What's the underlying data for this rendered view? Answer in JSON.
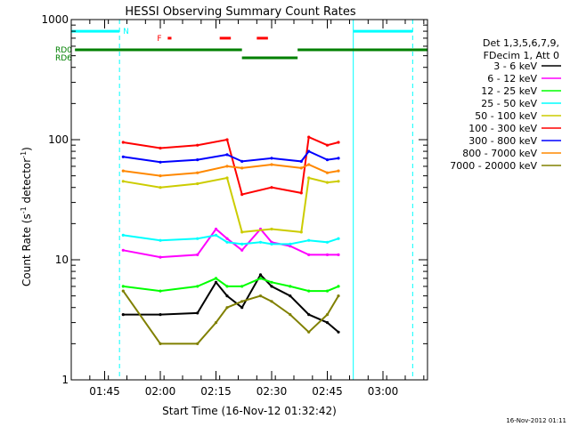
{
  "chart_data": {
    "type": "line",
    "title": "HESSI Observing Summary Count Rates",
    "xlabel": "Start Time (16-Nov-12 01:32:42)",
    "ylabel_main": "Count Rate (s",
    "ylabel_sup1": "-1",
    "ylabel_mid": " detector",
    "ylabel_sup2": "-1",
    "ylabel_end": ")",
    "y_scale": "log",
    "ylim": [
      1,
      1000
    ],
    "xlim": [
      "01:36",
      "03:12"
    ],
    "y_ticks": [
      {
        "value": 1,
        "label": "1"
      },
      {
        "value": 10,
        "label": "10"
      },
      {
        "value": 100,
        "label": "100"
      },
      {
        "value": 1000,
        "label": "1000"
      }
    ],
    "x_ticks": [
      {
        "value": "01:45",
        "label": "01:45"
      },
      {
        "value": "02:00",
        "label": "02:00"
      },
      {
        "value": "02:15",
        "label": "02:15"
      },
      {
        "value": "02:30",
        "label": "02:30"
      },
      {
        "value": "02:45",
        "label": "02:45"
      },
      {
        "value": "03:00",
        "label": "03:00"
      }
    ],
    "legend": {
      "placement": "right",
      "header": [
        "Det 1,3,5,6,7,9,",
        "FDecim 1, Att 0"
      ]
    },
    "series": [
      {
        "name": "3 - 6 keV",
        "color": "#000000",
        "values": [
          [
            "01:50",
            3.5
          ],
          [
            "02:00",
            3.5
          ],
          [
            "02:10",
            3.6
          ],
          [
            "02:15",
            6.5
          ],
          [
            "02:18",
            5
          ],
          [
            "02:22",
            4
          ],
          [
            "02:27",
            7.5
          ],
          [
            "02:30",
            6
          ],
          [
            "02:35",
            5
          ],
          [
            "02:40",
            3.5
          ],
          [
            "02:45",
            3
          ],
          [
            "02:48",
            2.5
          ]
        ]
      },
      {
        "name": "6 - 12 keV",
        "color": "#ff00ff",
        "values": [
          [
            "01:50",
            12
          ],
          [
            "02:00",
            10.5
          ],
          [
            "02:10",
            11
          ],
          [
            "02:15",
            18
          ],
          [
            "02:18",
            15
          ],
          [
            "02:22",
            12
          ],
          [
            "02:27",
            18
          ],
          [
            "02:30",
            14
          ],
          [
            "02:35",
            13
          ],
          [
            "02:40",
            11
          ],
          [
            "02:45",
            11
          ],
          [
            "02:48",
            11
          ]
        ]
      },
      {
        "name": "12 - 25 keV",
        "color": "#00ff00",
        "values": [
          [
            "01:50",
            6
          ],
          [
            "02:00",
            5.5
          ],
          [
            "02:10",
            6
          ],
          [
            "02:15",
            7
          ],
          [
            "02:18",
            6
          ],
          [
            "02:22",
            6
          ],
          [
            "02:27",
            7
          ],
          [
            "02:30",
            6.5
          ],
          [
            "02:35",
            6
          ],
          [
            "02:40",
            5.5
          ],
          [
            "02:45",
            5.5
          ],
          [
            "02:48",
            6
          ]
        ]
      },
      {
        "name": "25 - 50 keV",
        "color": "#00ffff",
        "values": [
          [
            "01:50",
            16
          ],
          [
            "02:00",
            14.5
          ],
          [
            "02:10",
            15
          ],
          [
            "02:15",
            16
          ],
          [
            "02:18",
            14
          ],
          [
            "02:22",
            13.5
          ],
          [
            "02:27",
            14
          ],
          [
            "02:30",
            13.5
          ],
          [
            "02:35",
            13.5
          ],
          [
            "02:40",
            14.5
          ],
          [
            "02:45",
            14
          ],
          [
            "02:48",
            15
          ]
        ]
      },
      {
        "name": "50 - 100 keV",
        "color": "#cccc00",
        "values": [
          [
            "01:50",
            45
          ],
          [
            "02:00",
            40
          ],
          [
            "02:10",
            43
          ],
          [
            "02:18",
            48
          ],
          [
            "02:22",
            17
          ],
          [
            "02:30",
            18
          ],
          [
            "02:38",
            17
          ],
          [
            "02:40",
            48
          ],
          [
            "02:45",
            44
          ],
          [
            "02:48",
            45
          ]
        ]
      },
      {
        "name": "100 - 300 keV",
        "color": "#ff0000",
        "values": [
          [
            "01:50",
            95
          ],
          [
            "02:00",
            85
          ],
          [
            "02:10",
            90
          ],
          [
            "02:18",
            100
          ],
          [
            "02:22",
            35
          ],
          [
            "02:30",
            40
          ],
          [
            "02:38",
            36
          ],
          [
            "02:40",
            105
          ],
          [
            "02:45",
            90
          ],
          [
            "02:48",
            95
          ]
        ]
      },
      {
        "name": "300 - 800 keV",
        "color": "#0000ff",
        "values": [
          [
            "01:50",
            72
          ],
          [
            "02:00",
            65
          ],
          [
            "02:10",
            68
          ],
          [
            "02:18",
            75
          ],
          [
            "02:22",
            66
          ],
          [
            "02:30",
            70
          ],
          [
            "02:38",
            66
          ],
          [
            "02:40",
            80
          ],
          [
            "02:45",
            68
          ],
          [
            "02:48",
            70
          ]
        ]
      },
      {
        "name": "800 - 7000 keV",
        "color": "#ff8800",
        "values": [
          [
            "01:50",
            55
          ],
          [
            "02:00",
            50
          ],
          [
            "02:10",
            53
          ],
          [
            "02:18",
            60
          ],
          [
            "02:22",
            58
          ],
          [
            "02:30",
            62
          ],
          [
            "02:38",
            58
          ],
          [
            "02:40",
            62
          ],
          [
            "02:45",
            53
          ],
          [
            "02:48",
            55
          ]
        ]
      },
      {
        "name": "7000 - 20000 keV",
        "color": "#808000",
        "values": [
          [
            "01:50",
            5.5
          ],
          [
            "02:00",
            2
          ],
          [
            "02:10",
            2
          ],
          [
            "02:15",
            3
          ],
          [
            "02:18",
            4
          ],
          [
            "02:22",
            4.5
          ],
          [
            "02:27",
            5
          ],
          [
            "02:30",
            4.5
          ],
          [
            "02:35",
            3.5
          ],
          [
            "02:40",
            2.5
          ],
          [
            "02:45",
            3.5
          ],
          [
            "02:48",
            5
          ]
        ]
      }
    ],
    "flag_bars": [
      {
        "label": "N",
        "label_color": "#00ffff",
        "color": "#00ffff",
        "segments": [
          [
            "01:36",
            "01:49"
          ],
          [
            "02:52",
            "03:08"
          ]
        ],
        "y": 800
      },
      {
        "label": "F",
        "label_color": "#ff0000",
        "color": "#ff0000",
        "segments": [
          [
            "02:02",
            "02:03"
          ],
          [
            "02:16",
            "02:19"
          ],
          [
            "02:26",
            "02:29"
          ]
        ],
        "y": 700
      },
      {
        "label": "RD0",
        "label_color": "#008000",
        "color": "#008000",
        "segments": [
          [
            "01:37",
            "02:22"
          ],
          [
            "02:37",
            "03:12"
          ]
        ],
        "y": 560
      },
      {
        "label": "RD6",
        "label_color": "#008000",
        "color": "#008000",
        "segments": [
          [
            "02:22",
            "02:37"
          ]
        ],
        "y": 480
      }
    ],
    "vertical_markers": [
      {
        "time": "01:36",
        "style": "solid",
        "color": "#00ffff"
      },
      {
        "time": "01:49",
        "style": "dashed",
        "color": "#00ffff"
      },
      {
        "time": "02:52",
        "style": "solid",
        "color": "#00ffff"
      },
      {
        "time": "03:08",
        "style": "dashed",
        "color": "#00ffff"
      }
    ]
  },
  "footer": {
    "timestamp": "16-Nov-2012 01:11"
  }
}
